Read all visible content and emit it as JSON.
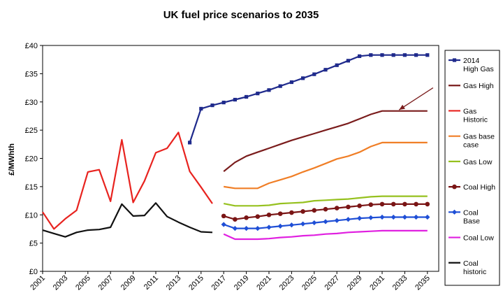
{
  "chart_data": {
    "type": "line",
    "title": "UK fuel price scenarios to 2035",
    "xlabel": "",
    "ylabel": "£/MWhth",
    "ylim": [
      0,
      40
    ],
    "xlim": [
      2001,
      2036
    ],
    "y_ticks": [
      "£0",
      "£5",
      "£10",
      "£15",
      "£20",
      "£25",
      "£30",
      "£35",
      "£40"
    ],
    "x_ticks": [
      "2001",
      "2003",
      "2005",
      "2007",
      "2009",
      "2011",
      "2013",
      "2015",
      "2017",
      "2019",
      "2021",
      "2023",
      "2025",
      "2027",
      "2029",
      "2031",
      "2033",
      "2035"
    ],
    "grid": false,
    "legend_position": "right",
    "series": [
      {
        "name": "2014 High Gas",
        "legend_lines": [
          "2014",
          "High Gas"
        ],
        "color": "#1f2a8c",
        "marker": "square",
        "x": [
          2014,
          2015,
          2016,
          2017,
          2018,
          2019,
          2020,
          2021,
          2022,
          2023,
          2024,
          2025,
          2026,
          2027,
          2028,
          2029,
          2030,
          2031,
          2032,
          2033,
          2034,
          2035
        ],
        "y": [
          22.8,
          28.8,
          29.4,
          29.9,
          30.4,
          30.9,
          31.5,
          32.1,
          32.8,
          33.5,
          34.2,
          34.9,
          35.7,
          36.5,
          37.3,
          38.1,
          38.3,
          38.3,
          38.3,
          38.3,
          38.3,
          38.3
        ]
      },
      {
        "name": "Gas High",
        "legend_lines": [
          "Gas High"
        ],
        "color": "#7a1c1c",
        "marker": "none",
        "x": [
          2017,
          2018,
          2019,
          2020,
          2021,
          2022,
          2023,
          2024,
          2025,
          2026,
          2027,
          2028,
          2029,
          2030,
          2031,
          2032,
          2033,
          2034,
          2035
        ],
        "y": [
          17.7,
          19.3,
          20.4,
          21.1,
          21.8,
          22.5,
          23.2,
          23.8,
          24.4,
          25.0,
          25.6,
          26.2,
          27.0,
          27.8,
          28.4,
          28.4,
          28.4,
          28.4,
          28.4
        ]
      },
      {
        "name": "Gas Historic",
        "legend_lines": [
          "Gas",
          "Historic"
        ],
        "color": "#e8231f",
        "marker": "none",
        "x": [
          2001,
          2002,
          2003,
          2004,
          2005,
          2006,
          2007,
          2008,
          2009,
          2010,
          2011,
          2012,
          2013,
          2014,
          2015,
          2016
        ],
        "y": [
          10.5,
          7.5,
          9.3,
          10.8,
          17.6,
          18.0,
          12.4,
          23.3,
          12.2,
          16.0,
          21.0,
          21.8,
          24.6,
          17.7,
          14.9,
          12.0
        ]
      },
      {
        "name": "Gas base case",
        "legend_lines": [
          "Gas base",
          "case"
        ],
        "color": "#f07e26",
        "marker": "none",
        "x": [
          2017,
          2018,
          2019,
          2020,
          2021,
          2022,
          2023,
          2024,
          2025,
          2026,
          2027,
          2028,
          2029,
          2030,
          2031,
          2032,
          2033,
          2034,
          2035
        ],
        "y": [
          15.0,
          14.7,
          14.7,
          14.7,
          15.6,
          16.2,
          16.8,
          17.6,
          18.3,
          19.1,
          19.9,
          20.4,
          21.1,
          22.1,
          22.8,
          22.8,
          22.8,
          22.8,
          22.8
        ]
      },
      {
        "name": "Gas Low",
        "legend_lines": [
          "Gas Low"
        ],
        "color": "#96c11f",
        "marker": "none",
        "x": [
          2017,
          2018,
          2019,
          2020,
          2021,
          2022,
          2023,
          2024,
          2025,
          2026,
          2027,
          2028,
          2029,
          2030,
          2031,
          2032,
          2033,
          2034,
          2035
        ],
        "y": [
          12.0,
          11.6,
          11.6,
          11.6,
          11.7,
          12.0,
          12.1,
          12.2,
          12.5,
          12.6,
          12.7,
          12.8,
          13.0,
          13.2,
          13.3,
          13.3,
          13.3,
          13.3,
          13.3
        ]
      },
      {
        "name": "Coal High",
        "legend_lines": [
          "Coal High"
        ],
        "color": "#7a1515",
        "marker": "circle",
        "x": [
          2017,
          2018,
          2019,
          2020,
          2021,
          2022,
          2023,
          2024,
          2025,
          2026,
          2027,
          2028,
          2029,
          2030,
          2031,
          2032,
          2033,
          2034,
          2035
        ],
        "y": [
          9.8,
          9.2,
          9.5,
          9.7,
          10.0,
          10.2,
          10.4,
          10.6,
          10.8,
          11.0,
          11.2,
          11.4,
          11.6,
          11.8,
          11.9,
          11.9,
          11.9,
          11.9,
          11.9
        ]
      },
      {
        "name": "Coal Base",
        "legend_lines": [
          "Coal",
          "Base"
        ],
        "color": "#1f4fd6",
        "marker": "diamond",
        "x": [
          2017,
          2018,
          2019,
          2020,
          2021,
          2022,
          2023,
          2024,
          2025,
          2026,
          2027,
          2028,
          2029,
          2030,
          2031,
          2032,
          2033,
          2034,
          2035
        ],
        "y": [
          8.3,
          7.6,
          7.6,
          7.6,
          7.8,
          8.0,
          8.2,
          8.4,
          8.6,
          8.8,
          9.0,
          9.2,
          9.4,
          9.5,
          9.6,
          9.6,
          9.6,
          9.6,
          9.6
        ]
      },
      {
        "name": "Coal Low",
        "legend_lines": [
          "Coal Low"
        ],
        "color": "#e020e0",
        "marker": "none",
        "x": [
          2017,
          2018,
          2019,
          2020,
          2021,
          2022,
          2023,
          2024,
          2025,
          2026,
          2027,
          2028,
          2029,
          2030,
          2031,
          2032,
          2033,
          2034,
          2035
        ],
        "y": [
          6.6,
          5.7,
          5.7,
          5.7,
          5.8,
          6.0,
          6.1,
          6.3,
          6.4,
          6.6,
          6.7,
          6.9,
          7.0,
          7.1,
          7.2,
          7.2,
          7.2,
          7.2,
          7.2
        ]
      },
      {
        "name": "Coal historic",
        "legend_lines": [
          "Coal",
          "historic"
        ],
        "color": "#111111",
        "marker": "none",
        "x": [
          2001,
          2002,
          2003,
          2004,
          2005,
          2006,
          2007,
          2008,
          2009,
          2010,
          2011,
          2012,
          2013,
          2014,
          2015,
          2016
        ],
        "y": [
          7.3,
          6.7,
          6.1,
          6.9,
          7.3,
          7.4,
          7.8,
          11.9,
          9.8,
          9.9,
          12.1,
          9.7,
          8.7,
          7.8,
          7.0,
          6.9
        ]
      }
    ],
    "annotations": [
      {
        "type": "arrow",
        "from": [
          2035.5,
          32.5
        ],
        "to": [
          2032.5,
          28.6
        ]
      }
    ]
  }
}
